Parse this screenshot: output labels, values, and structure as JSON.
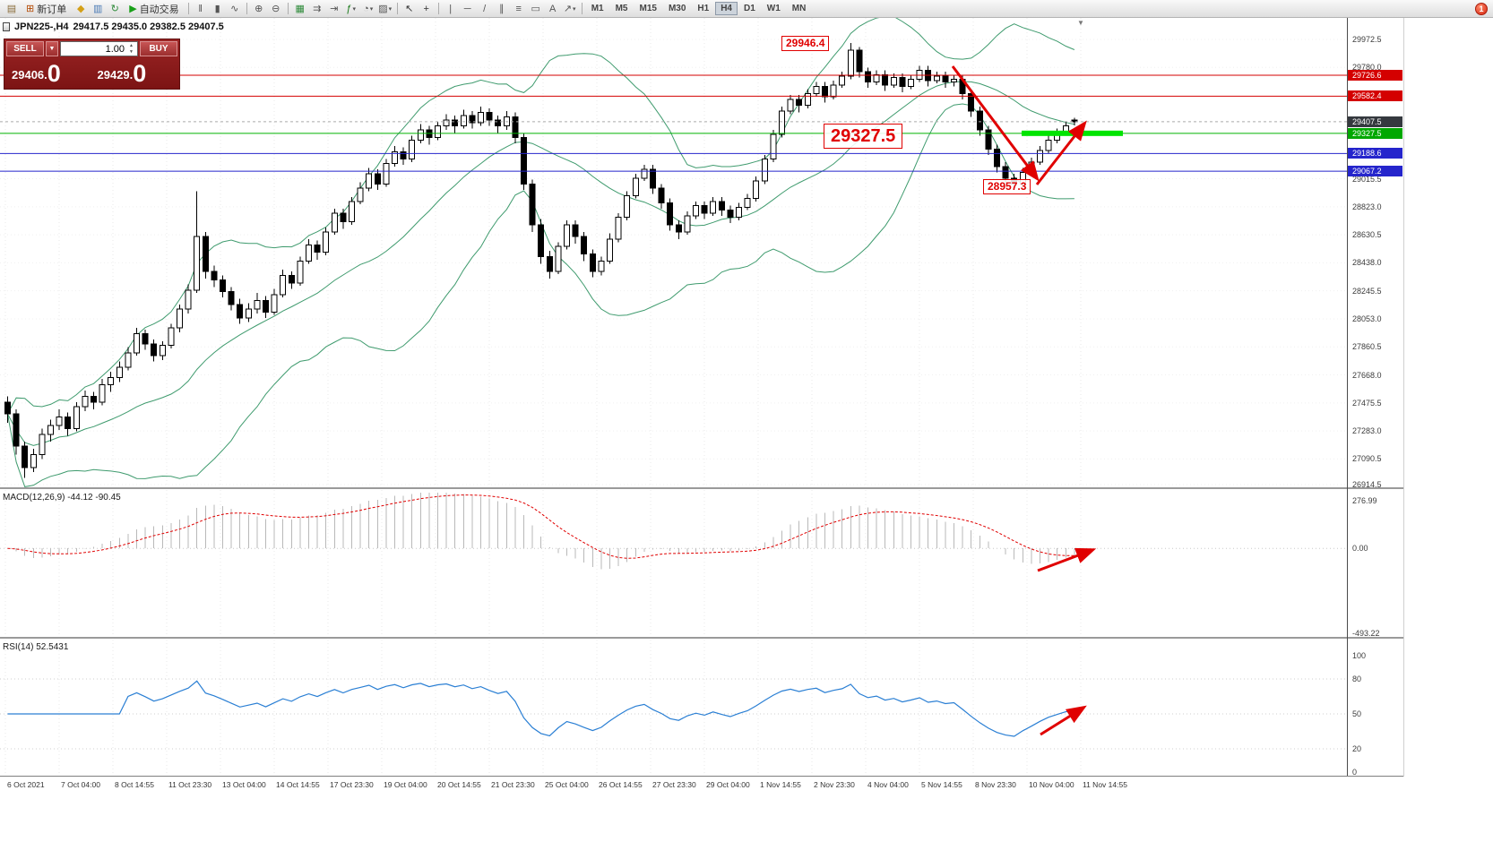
{
  "toolbar": {
    "new_order": "新订单",
    "auto_trading": "自动交易",
    "timeframes": [
      "M1",
      "M5",
      "M15",
      "M30",
      "H1",
      "H4",
      "D1",
      "W1",
      "MN"
    ],
    "active_timeframe": "H4",
    "notification_count": "1",
    "items": [
      {
        "t": "icon",
        "n": "chart-window-icon",
        "g": "▤",
        "c": "#8a6d3b"
      },
      {
        "t": "btn",
        "n": "new-order-button",
        "g": "⊞",
        "c": "#b34700",
        "l": "新订单"
      },
      {
        "t": "icon",
        "n": "coins-icon",
        "g": "◆",
        "c": "#d4a017"
      },
      {
        "t": "icon",
        "n": "market-depth-icon",
        "g": "▥",
        "c": "#4a7ab5"
      },
      {
        "t": "icon",
        "n": "refresh-icon",
        "g": "↻",
        "c": "#2e8b3a"
      },
      {
        "t": "btn",
        "n": "auto-trading-button",
        "g": "▶",
        "c": "#18a018",
        "l": "自动交易"
      },
      {
        "t": "sep"
      },
      {
        "t": "icon",
        "n": "bar-chart-icon",
        "g": "‖",
        "c": "#555"
      },
      {
        "t": "icon",
        "n": "candlestick-chart-icon",
        "g": "▮",
        "c": "#555"
      },
      {
        "t": "icon",
        "n": "line-chart-icon",
        "g": "∿",
        "c": "#555"
      },
      {
        "t": "sep"
      },
      {
        "t": "icon",
        "n": "zoom-in-icon",
        "g": "⊕",
        "c": "#555"
      },
      {
        "t": "icon",
        "n": "zoom-out-icon",
        "g": "⊖",
        "c": "#555"
      },
      {
        "t": "sep"
      },
      {
        "t": "icon",
        "n": "tile-windows-icon",
        "g": "▦",
        "c": "#2e8b3a"
      },
      {
        "t": "icon",
        "n": "auto-scroll-icon",
        "g": "⇉",
        "c": "#555"
      },
      {
        "t": "icon",
        "n": "chart-shift-icon",
        "g": "⇥",
        "c": "#555"
      },
      {
        "t": "icon",
        "n": "indicators-icon",
        "g": "ƒ",
        "c": "#1a7a1a",
        "d": true
      },
      {
        "t": "icon",
        "n": "periods-icon",
        "g": "◔",
        "c": "#555",
        "d": true
      },
      {
        "t": "icon",
        "n": "templates-icon",
        "g": "▨",
        "c": "#555",
        "d": true
      },
      {
        "t": "sep"
      },
      {
        "t": "icon",
        "n": "cursor-icon",
        "g": "↖",
        "c": "#333"
      },
      {
        "t": "icon",
        "n": "crosshair-icon",
        "g": "+",
        "c": "#333"
      },
      {
        "t": "sep"
      },
      {
        "t": "icon",
        "n": "vertical-line-icon",
        "g": "|",
        "c": "#555"
      },
      {
        "t": "icon",
        "n": "horizontal-line-icon",
        "g": "─",
        "c": "#555"
      },
      {
        "t": "icon",
        "n": "trendline-icon",
        "g": "/",
        "c": "#555"
      },
      {
        "t": "icon",
        "n": "channel-icon",
        "g": "∥",
        "c": "#555"
      },
      {
        "t": "icon",
        "n": "fibonacci-icon",
        "g": "≡",
        "c": "#555"
      },
      {
        "t": "icon",
        "n": "shapes-icon",
        "g": "▭",
        "c": "#555"
      },
      {
        "t": "icon",
        "n": "text-icon",
        "g": "A",
        "c": "#555"
      },
      {
        "t": "icon",
        "n": "arrows-icon",
        "g": "↗",
        "c": "#555",
        "d": true
      },
      {
        "t": "sep"
      }
    ]
  },
  "symbol_line": {
    "symbol": "JPN225-,H4",
    "ohlc": "29417.5 29435.0 29382.5 29407.5"
  },
  "trade_panel": {
    "sell_label": "SELL",
    "buy_label": "BUY",
    "volume": "1.00",
    "dropdown_glyph": "▼",
    "spin_up": "▲",
    "spin_down": "▼",
    "sell_price_main": "29406.",
    "sell_price_big": "0",
    "buy_price_main": "29429.",
    "buy_price_big": "0"
  },
  "annotations": {
    "high": "29946.4",
    "mid": "29327.5",
    "low": "28957.3"
  },
  "price_axis": {
    "ticks": [
      {
        "label": "29972.5",
        "price": 29972.5
      },
      {
        "label": "29780.0",
        "price": 29780.0
      },
      {
        "label": "29015.5",
        "price": 29015.5
      },
      {
        "label": "28823.0",
        "price": 28823.0
      },
      {
        "label": "28630.5",
        "price": 28630.5
      },
      {
        "label": "28438.0",
        "price": 28438.0
      },
      {
        "label": "28245.5",
        "price": 28245.5
      },
      {
        "label": "28053.0",
        "price": 28053.0
      },
      {
        "label": "27860.5",
        "price": 27860.5
      },
      {
        "label": "27668.0",
        "price": 27668.0
      },
      {
        "label": "27475.5",
        "price": 27475.5
      },
      {
        "label": "27283.0",
        "price": 27283.0
      },
      {
        "label": "27090.5",
        "price": 27090.5
      },
      {
        "label": "26914.5",
        "price": 26914.5
      }
    ],
    "tags": [
      {
        "label": "29726.6",
        "price": 29726.6,
        "color": "#d40000"
      },
      {
        "label": "29582.4",
        "price": 29582.4,
        "color": "#d40000"
      },
      {
        "label": "29407.5",
        "price": 29407.5,
        "color": "#35393f"
      },
      {
        "label": "29327.5",
        "price": 29327.5,
        "color": "#00a800"
      },
      {
        "label": "29188.6",
        "price": 29188.6,
        "color": "#2525cc"
      },
      {
        "label": "29067.2",
        "price": 29067.2,
        "color": "#2525cc"
      }
    ]
  },
  "macd": {
    "label": "MACD(12,26,9) -44.12 -90.45",
    "max": 276.99,
    "min": -493.22,
    "axis": [
      {
        "label": "276.99",
        "value": 276.99
      },
      {
        "label": "0.00",
        "value": 0
      },
      {
        "label": "-493.22",
        "value": -493.22
      }
    ]
  },
  "rsi": {
    "label": "RSI(14) 52.5431",
    "levels": [
      80,
      50,
      20
    ],
    "axis": [
      {
        "label": "100",
        "value": 100
      },
      {
        "label": "80",
        "value": 80
      },
      {
        "label": "50",
        "value": 50
      },
      {
        "label": "20",
        "value": 20
      },
      {
        "label": "0",
        "value": 0
      }
    ]
  },
  "time_axis": [
    "6 Oct 2021",
    "7 Oct 04:00",
    "8 Oct 14:55",
    "11 Oct 23:30",
    "13 Oct 04:00",
    "14 Oct 14:55",
    "17 Oct 23:30",
    "19 Oct 04:00",
    "20 Oct 14:55",
    "21 Oct 23:30",
    "25 Oct 04:00",
    "26 Oct 14:55",
    "27 Oct 23:30",
    "29 Oct 04:00",
    "1 Nov 14:55",
    "2 Nov 23:30",
    "4 Nov 04:00",
    "5 Nov 14:55",
    "8 Nov 23:30",
    "10 Nov 04:00",
    "11 Nov 14:55"
  ],
  "chart_data": {
    "type": "candlestick",
    "symbol": "JPN225-",
    "timeframe": "H4",
    "title": "JPN225-,H4",
    "ohlc_current": {
      "open": 29417.5,
      "high": 29435.0,
      "low": 29382.5,
      "close": 29407.5
    },
    "price_range": [
      26914.5,
      29972.5
    ],
    "levels": {
      "red": [
        29726.6,
        29582.4
      ],
      "blue": [
        29188.6,
        29067.2
      ],
      "green": 29327.5,
      "current": 29407.5
    },
    "highlight_zone": {
      "price": 29327.5,
      "color": "#00e400"
    },
    "swing_points": {
      "high": 29946.4,
      "support": 29327.5,
      "low": 28957.3
    },
    "indicators": {
      "bollinger": {
        "period": 20,
        "deviation": 2,
        "color": "#3f9b6e"
      },
      "macd": {
        "fast": 12,
        "slow": 26,
        "signal": 9,
        "current_main": -44.12,
        "current_signal": -90.45
      },
      "rsi": {
        "period": 14,
        "current": 52.5431
      }
    },
    "candles": [
      [
        27480,
        27520,
        27340,
        27400
      ],
      [
        27400,
        27430,
        27120,
        27180
      ],
      [
        27180,
        27210,
        26960,
        27030
      ],
      [
        27030,
        27160,
        27000,
        27120
      ],
      [
        27120,
        27300,
        27090,
        27260
      ],
      [
        27260,
        27360,
        27210,
        27320
      ],
      [
        27320,
        27430,
        27290,
        27380
      ],
      [
        27380,
        27410,
        27250,
        27300
      ],
      [
        27300,
        27480,
        27280,
        27450
      ],
      [
        27450,
        27560,
        27420,
        27520
      ],
      [
        27520,
        27550,
        27430,
        27480
      ],
      [
        27480,
        27640,
        27460,
        27600
      ],
      [
        27600,
        27690,
        27550,
        27650
      ],
      [
        27650,
        27760,
        27620,
        27720
      ],
      [
        27720,
        27860,
        27700,
        27820
      ],
      [
        27820,
        27990,
        27800,
        27950
      ],
      [
        27950,
        27980,
        27840,
        27880
      ],
      [
        27880,
        27910,
        27760,
        27800
      ],
      [
        27800,
        27900,
        27770,
        27870
      ],
      [
        27870,
        28020,
        27850,
        27990
      ],
      [
        27990,
        28150,
        27960,
        28120
      ],
      [
        28120,
        28290,
        28090,
        28250
      ],
      [
        28250,
        28930,
        28230,
        28620
      ],
      [
        28620,
        28650,
        28330,
        28380
      ],
      [
        28380,
        28420,
        28270,
        28320
      ],
      [
        28320,
        28350,
        28200,
        28240
      ],
      [
        28240,
        28270,
        28110,
        28150
      ],
      [
        28150,
        28190,
        28020,
        28060
      ],
      [
        28060,
        28160,
        28030,
        28120
      ],
      [
        28120,
        28230,
        28090,
        28180
      ],
      [
        28180,
        28210,
        28060,
        28100
      ],
      [
        28100,
        28260,
        28080,
        28220
      ],
      [
        28220,
        28390,
        28200,
        28350
      ],
      [
        28350,
        28380,
        28260,
        28300
      ],
      [
        28300,
        28480,
        28280,
        28450
      ],
      [
        28450,
        28600,
        28430,
        28560
      ],
      [
        28560,
        28590,
        28460,
        28510
      ],
      [
        28510,
        28680,
        28490,
        28650
      ],
      [
        28650,
        28810,
        28630,
        28780
      ],
      [
        28780,
        28810,
        28670,
        28720
      ],
      [
        28720,
        28890,
        28700,
        28860
      ],
      [
        28860,
        28990,
        28840,
        28950
      ],
      [
        28950,
        29090,
        28930,
        29050
      ],
      [
        29050,
        29080,
        28940,
        28980
      ],
      [
        28980,
        29150,
        28960,
        29120
      ],
      [
        29120,
        29240,
        29100,
        29200
      ],
      [
        29200,
        29230,
        29110,
        29150
      ],
      [
        29150,
        29310,
        29130,
        29280
      ],
      [
        29280,
        29390,
        29260,
        29350
      ],
      [
        29350,
        29380,
        29250,
        29300
      ],
      [
        29300,
        29410,
        29280,
        29380
      ],
      [
        29380,
        29460,
        29350,
        29420
      ],
      [
        29420,
        29450,
        29330,
        29380
      ],
      [
        29380,
        29490,
        29360,
        29450
      ],
      [
        29450,
        29480,
        29360,
        29400
      ],
      [
        29400,
        29510,
        29380,
        29470
      ],
      [
        29470,
        29500,
        29380,
        29420
      ],
      [
        29420,
        29450,
        29330,
        29380
      ],
      [
        29380,
        29480,
        29350,
        29440
      ],
      [
        29440,
        29470,
        29260,
        29300
      ],
      [
        29300,
        29330,
        28940,
        28980
      ],
      [
        28980,
        29010,
        28650,
        28700
      ],
      [
        28700,
        28740,
        28430,
        28480
      ],
      [
        28480,
        28520,
        28330,
        28380
      ],
      [
        28380,
        28580,
        28360,
        28550
      ],
      [
        28550,
        28730,
        28530,
        28700
      ],
      [
        28700,
        28730,
        28570,
        28620
      ],
      [
        28620,
        28650,
        28450,
        28500
      ],
      [
        28500,
        28530,
        28340,
        28380
      ],
      [
        28380,
        28480,
        28350,
        28450
      ],
      [
        28450,
        28640,
        28430,
        28600
      ],
      [
        28600,
        28780,
        28580,
        28750
      ],
      [
        28750,
        28930,
        28730,
        28900
      ],
      [
        28900,
        29050,
        28880,
        29020
      ],
      [
        29020,
        29110,
        29000,
        29080
      ],
      [
        29080,
        29110,
        28910,
        28950
      ],
      [
        28950,
        28980,
        28810,
        28850
      ],
      [
        28850,
        28880,
        28660,
        28700
      ],
      [
        28700,
        28730,
        28600,
        28650
      ],
      [
        28650,
        28790,
        28630,
        28760
      ],
      [
        28760,
        28860,
        28740,
        28830
      ],
      [
        28830,
        28860,
        28740,
        28780
      ],
      [
        28780,
        28890,
        28760,
        28860
      ],
      [
        28860,
        28890,
        28760,
        28800
      ],
      [
        28800,
        28830,
        28710,
        28750
      ],
      [
        28750,
        28850,
        28730,
        28820
      ],
      [
        28820,
        28910,
        28800,
        28880
      ],
      [
        28880,
        29030,
        28860,
        29000
      ],
      [
        29000,
        29180,
        28980,
        29150
      ],
      [
        29150,
        29350,
        29130,
        29320
      ],
      [
        29320,
        29510,
        29300,
        29480
      ],
      [
        29480,
        29590,
        29460,
        29560
      ],
      [
        29560,
        29590,
        29470,
        29520
      ],
      [
        29520,
        29630,
        29500,
        29600
      ],
      [
        29600,
        29680,
        29580,
        29650
      ],
      [
        29650,
        29680,
        29540,
        29580
      ],
      [
        29580,
        29690,
        29560,
        29660
      ],
      [
        29660,
        29750,
        29640,
        29720
      ],
      [
        29720,
        29946.4,
        29700,
        29900
      ],
      [
        29900,
        29920,
        29710,
        29750
      ],
      [
        29750,
        29780,
        29640,
        29680
      ],
      [
        29680,
        29760,
        29660,
        29730
      ],
      [
        29730,
        29760,
        29620,
        29660
      ],
      [
        29660,
        29740,
        29640,
        29710
      ],
      [
        29710,
        29740,
        29610,
        29650
      ],
      [
        29650,
        29730,
        29630,
        29700
      ],
      [
        29700,
        29790,
        29680,
        29760
      ],
      [
        29760,
        29790,
        29650,
        29690
      ],
      [
        29690,
        29750,
        29670,
        29720
      ],
      [
        29720,
        29750,
        29640,
        29680
      ],
      [
        29680,
        29730,
        29650,
        29700
      ],
      [
        29700,
        29730,
        29560,
        29600
      ],
      [
        29600,
        29630,
        29440,
        29480
      ],
      [
        29480,
        29510,
        29310,
        29350
      ],
      [
        29350,
        29380,
        29180,
        29220
      ],
      [
        29220,
        29250,
        29060,
        29100
      ],
      [
        29100,
        29130,
        28980,
        29020
      ],
      [
        29020,
        29050,
        28957.3,
        28980
      ],
      [
        28980,
        29090,
        28960,
        29060
      ],
      [
        29060,
        29160,
        29040,
        29130
      ],
      [
        29130,
        29240,
        29110,
        29210
      ],
      [
        29210,
        29310,
        29190,
        29280
      ],
      [
        29280,
        29360,
        29260,
        29330
      ],
      [
        29330,
        29410,
        29310,
        29380
      ],
      [
        29417.5,
        29435.0,
        29382.5,
        29407.5
      ]
    ]
  }
}
